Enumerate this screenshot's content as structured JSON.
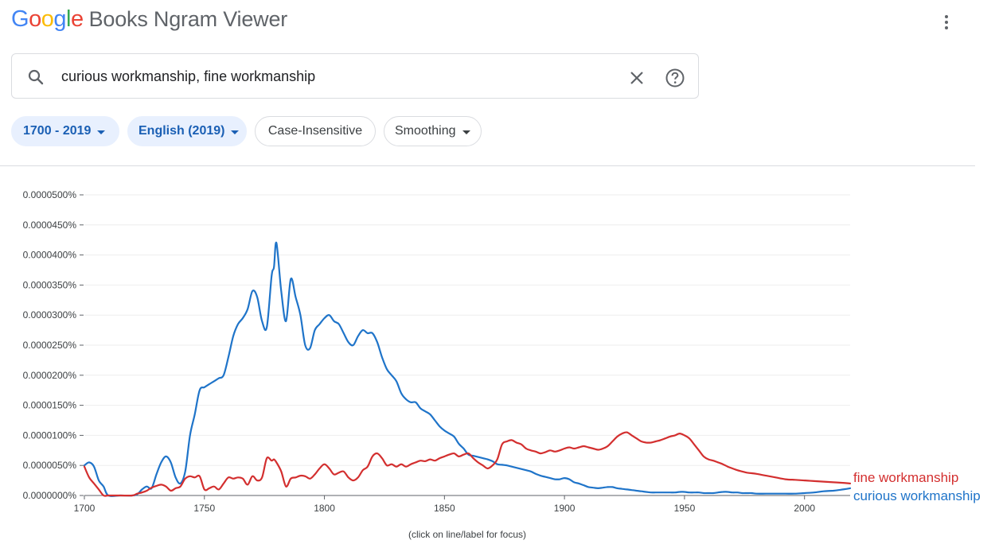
{
  "header": {
    "logo_letters": [
      {
        "char": "G",
        "color": "#4285F4"
      },
      {
        "char": "o",
        "color": "#EA4335"
      },
      {
        "char": "o",
        "color": "#FBBC05"
      },
      {
        "char": "g",
        "color": "#4285F4"
      },
      {
        "char": "l",
        "color": "#34A853"
      },
      {
        "char": "e",
        "color": "#EA4335"
      }
    ],
    "logo_rest": "Books Ngram Viewer",
    "menu_icon": "kebab-menu-icon"
  },
  "search": {
    "value": "curious workmanship, fine workmanship",
    "icons": {
      "search": "search-icon",
      "clear": "close-icon",
      "help": "help-icon"
    }
  },
  "filters": {
    "year_range": "1700 - 2019",
    "corpus": "English (2019)",
    "case": "Case-Insensitive",
    "smoothing": "Smoothing"
  },
  "chart_data": {
    "type": "line",
    "x_range": [
      1700,
      2019
    ],
    "ylim": [
      0,
      5e-05
    ],
    "xticks": [
      "1700",
      "1750",
      "1800",
      "1850",
      "1900",
      "1950",
      "2000"
    ],
    "yticks": [
      "0.0000000%",
      "0.0000050%",
      "0.0000100%",
      "0.0000150%",
      "0.0000200%",
      "0.0000250%",
      "0.0000300%",
      "0.0000350%",
      "0.0000400%",
      "0.0000450%",
      "0.0000500%"
    ],
    "x": [
      1700,
      1702,
      1704,
      1706,
      1708,
      1710,
      1715,
      1720,
      1722,
      1724,
      1726,
      1728,
      1730,
      1732,
      1734,
      1736,
      1738,
      1740,
      1742,
      1744,
      1746,
      1748,
      1750,
      1752,
      1754,
      1756,
      1758,
      1760,
      1762,
      1764,
      1766,
      1768,
      1770,
      1772,
      1774,
      1776,
      1778,
      1779,
      1780,
      1782,
      1784,
      1786,
      1788,
      1790,
      1792,
      1794,
      1796,
      1798,
      1800,
      1802,
      1804,
      1806,
      1808,
      1810,
      1812,
      1814,
      1816,
      1818,
      1820,
      1822,
      1824,
      1826,
      1828,
      1830,
      1832,
      1834,
      1836,
      1838,
      1840,
      1842,
      1844,
      1846,
      1848,
      1850,
      1852,
      1854,
      1856,
      1858,
      1860,
      1862,
      1864,
      1866,
      1868,
      1870,
      1872,
      1874,
      1876,
      1878,
      1880,
      1882,
      1884,
      1886,
      1888,
      1890,
      1892,
      1894,
      1896,
      1898,
      1900,
      1902,
      1904,
      1906,
      1908,
      1910,
      1912,
      1914,
      1916,
      1918,
      1920,
      1922,
      1924,
      1926,
      1928,
      1930,
      1932,
      1934,
      1936,
      1938,
      1940,
      1942,
      1944,
      1946,
      1948,
      1950,
      1952,
      1954,
      1956,
      1958,
      1960,
      1962,
      1964,
      1966,
      1968,
      1970,
      1972,
      1974,
      1976,
      1978,
      1980,
      1984,
      1988,
      1992,
      1996,
      2000,
      2004,
      2008,
      2012,
      2016,
      2019
    ],
    "series": [
      {
        "name": "curious workmanship",
        "color": "#1f74c9",
        "values": [
          5e-06,
          5.5e-06,
          4.8e-06,
          2.5e-06,
          1.5e-06,
          0,
          0,
          0,
          2e-07,
          1e-06,
          1.5e-06,
          1.2e-06,
          3.5e-06,
          5.5e-06,
          6.5e-06,
          5.5e-06,
          3e-06,
          2e-06,
          4e-06,
          1e-05,
          1.35e-05,
          1.75e-05,
          1.8e-05,
          1.85e-05,
          1.9e-05,
          1.95e-05,
          2e-05,
          2.3e-05,
          2.65e-05,
          2.85e-05,
          2.95e-05,
          3.1e-05,
          3.4e-05,
          3.3e-05,
          2.9e-05,
          2.8e-05,
          3.65e-05,
          3.8e-05,
          4.2e-05,
          3.4e-05,
          2.9e-05,
          3.6e-05,
          3.3e-05,
          3e-05,
          2.5e-05,
          2.45e-05,
          2.75e-05,
          2.85e-05,
          2.95e-05,
          3e-05,
          2.9e-05,
          2.85e-05,
          2.7e-05,
          2.55e-05,
          2.5e-05,
          2.65e-05,
          2.75e-05,
          2.7e-05,
          2.7e-05,
          2.55e-05,
          2.3e-05,
          2.1e-05,
          2e-05,
          1.9e-05,
          1.7e-05,
          1.6e-05,
          1.55e-05,
          1.55e-05,
          1.45e-05,
          1.4e-05,
          1.35e-05,
          1.25e-05,
          1.15e-05,
          1.08e-05,
          1.03e-05,
          9.8e-06,
          8.6e-06,
          7.8e-06,
          6.8e-06,
          6.6e-06,
          6.4e-06,
          6.2e-06,
          6e-06,
          5.7e-06,
          5.2e-06,
          5.1e-06,
          5e-06,
          4.8e-06,
          4.6e-06,
          4.4e-06,
          4.2e-06,
          4e-06,
          3.6e-06,
          3.3e-06,
          3.1e-06,
          2.9e-06,
          2.7e-06,
          2.7e-06,
          2.9e-06,
          2.7e-06,
          2.2e-06,
          2e-06,
          1.7e-06,
          1.4e-06,
          1.3e-06,
          1.2e-06,
          1.3e-06,
          1.4e-06,
          1.4e-06,
          1.2e-06,
          1.1e-06,
          1e-06,
          9e-07,
          8e-07,
          7e-07,
          6e-07,
          5e-07,
          5e-07,
          5e-07,
          5e-07,
          5e-07,
          5e-07,
          6e-07,
          6e-07,
          5e-07,
          5e-07,
          5e-07,
          4e-07,
          4e-07,
          4e-07,
          5e-07,
          6e-07,
          6e-07,
          5e-07,
          5e-07,
          4e-07,
          4e-07,
          4e-07,
          3e-07,
          3e-07,
          3e-07,
          3e-07,
          3e-07,
          4e-07,
          5e-07,
          7e-07,
          8e-07,
          1e-06,
          1.2e-06
        ]
      },
      {
        "name": "fine workmanship",
        "color": "#d32f2f",
        "values": [
          4.8e-06,
          3e-06,
          2e-06,
          1e-06,
          0,
          0,
          0,
          0,
          3e-07,
          5e-07,
          8e-07,
          1.3e-06,
          1.6e-06,
          1.8e-06,
          1.5e-06,
          8e-07,
          1.2e-06,
          1.5e-06,
          2.8e-06,
          3.2e-06,
          3e-06,
          3.2e-06,
          1e-06,
          1.2e-06,
          1.5e-06,
          1e-06,
          2e-06,
          3e-06,
          2.8e-06,
          3e-06,
          2.8e-06,
          1.8e-06,
          3.2e-06,
          2.5e-06,
          3e-06,
          6.2e-06,
          5.8e-06,
          6e-06,
          5.5e-06,
          4e-06,
          1.5e-06,
          2.8e-06,
          3e-06,
          3.3e-06,
          3.2e-06,
          2.8e-06,
          3.5e-06,
          4.5e-06,
          5.2e-06,
          4.5e-06,
          3.5e-06,
          3.8e-06,
          4e-06,
          3e-06,
          2.5e-06,
          3e-06,
          4.2e-06,
          4.8e-06,
          6.5e-06,
          7e-06,
          6.2e-06,
          5e-06,
          5.2e-06,
          4.8e-06,
          5.2e-06,
          4.8e-06,
          5.2e-06,
          5.5e-06,
          5.8e-06,
          5.7e-06,
          6e-06,
          5.8e-06,
          6.2e-06,
          6.5e-06,
          6.8e-06,
          7e-06,
          6.5e-06,
          6.8e-06,
          7e-06,
          6.2e-06,
          5.5e-06,
          5e-06,
          4.5e-06,
          5e-06,
          6e-06,
          8.5e-06,
          9e-06,
          9.2e-06,
          8.8e-06,
          8.5e-06,
          7.8e-06,
          7.5e-06,
          7.3e-06,
          7e-06,
          7.2e-06,
          7.5e-06,
          7.3e-06,
          7.5e-06,
          7.8e-06,
          8e-06,
          7.8e-06,
          8e-06,
          8.2e-06,
          8e-06,
          7.8e-06,
          7.6e-06,
          7.8e-06,
          8.2e-06,
          9e-06,
          9.8e-06,
          1.03e-05,
          1.05e-05,
          1e-05,
          9.5e-06,
          9e-06,
          8.8e-06,
          8.8e-06,
          9e-06,
          9.2e-06,
          9.5e-06,
          9.8e-06,
          1e-05,
          1.03e-05,
          1e-05,
          9.5e-06,
          8.5e-06,
          7.5e-06,
          6.5e-06,
          6e-06,
          5.8e-06,
          5.5e-06,
          5.2e-06,
          4.8e-06,
          4.5e-06,
          4.2e-06,
          4e-06,
          3.8e-06,
          3.7e-06,
          3.6e-06,
          3.3e-06,
          3e-06,
          2.7e-06,
          2.6e-06,
          2.5e-06,
          2.4e-06,
          2.3e-06,
          2.2e-06,
          2.1e-06,
          2e-06
        ]
      }
    ],
    "footnote": "(click on line/label for focus)"
  }
}
